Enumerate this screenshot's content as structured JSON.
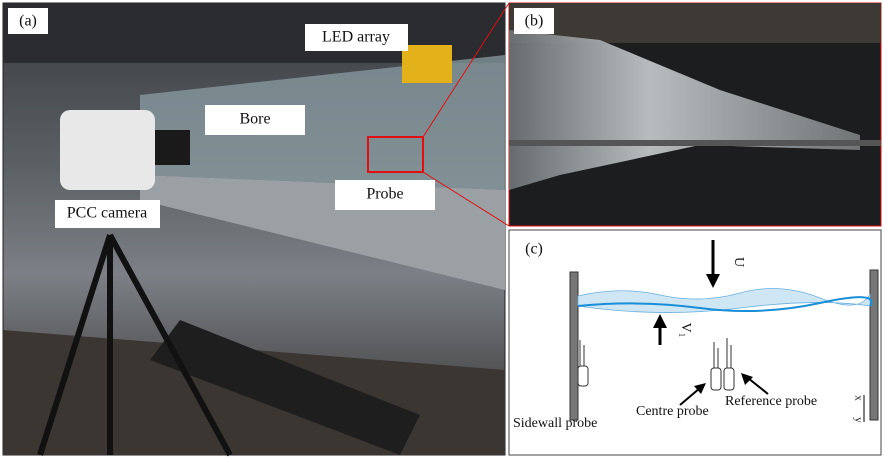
{
  "panels": {
    "a": {
      "label": "(a)",
      "callouts": {
        "led": "LED array",
        "bore": "Bore",
        "camera": "PCC camera",
        "probe": "Probe"
      }
    },
    "b": {
      "label": "(b)"
    },
    "c": {
      "label": "(c)",
      "flow_velocity": "U",
      "bore_velocity": "V₁",
      "probes": {
        "sidewall": "Sidewall probe",
        "centre": "Centre probe",
        "reference": "Reference probe"
      },
      "axes": {
        "x": "x",
        "y": "y"
      }
    }
  }
}
